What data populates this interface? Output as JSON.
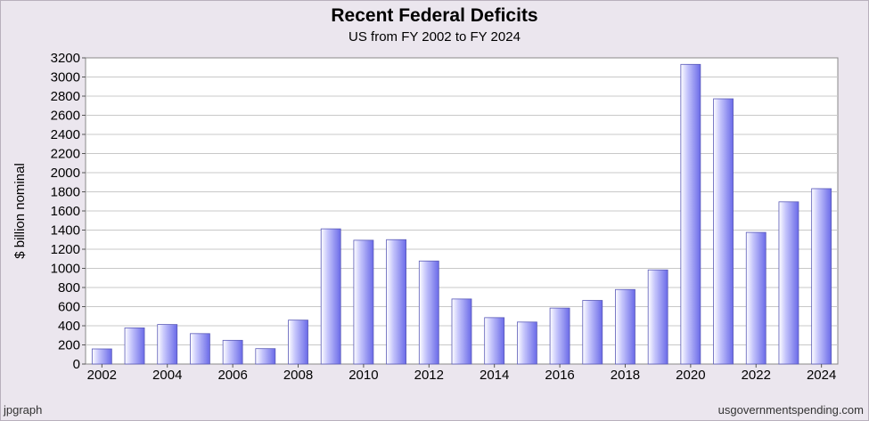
{
  "chart_data": {
    "type": "bar",
    "title": "Recent Federal Deficits",
    "subtitle": "US from FY 2002 to FY 2024",
    "ylabel": "$ billion nominal",
    "xlabel": "",
    "categories": [
      "2002",
      "2003",
      "2004",
      "2005",
      "2006",
      "2007",
      "2008",
      "2009",
      "2010",
      "2011",
      "2012",
      "2013",
      "2014",
      "2015",
      "2016",
      "2017",
      "2018",
      "2019",
      "2020",
      "2021",
      "2022",
      "2023",
      "2024"
    ],
    "values": [
      158,
      378,
      413,
      318,
      248,
      161,
      459,
      1413,
      1294,
      1300,
      1077,
      680,
      485,
      439,
      585,
      665,
      779,
      984,
      3132,
      2772,
      1376,
      1695,
      1833
    ],
    "x_tick_labels": [
      "2002",
      "2004",
      "2006",
      "2008",
      "2010",
      "2012",
      "2014",
      "2016",
      "2018",
      "2020",
      "2022",
      "2024"
    ],
    "y_ticks": [
      0,
      200,
      400,
      600,
      800,
      1000,
      1200,
      1400,
      1600,
      1800,
      2000,
      2200,
      2400,
      2600,
      2800,
      3000,
      3200
    ],
    "ylim": [
      0,
      3200
    ],
    "grid": true,
    "bar_color": "#8080f0"
  },
  "footer": {
    "left": "jpgraph",
    "right": "usgovernmentspending.com"
  }
}
